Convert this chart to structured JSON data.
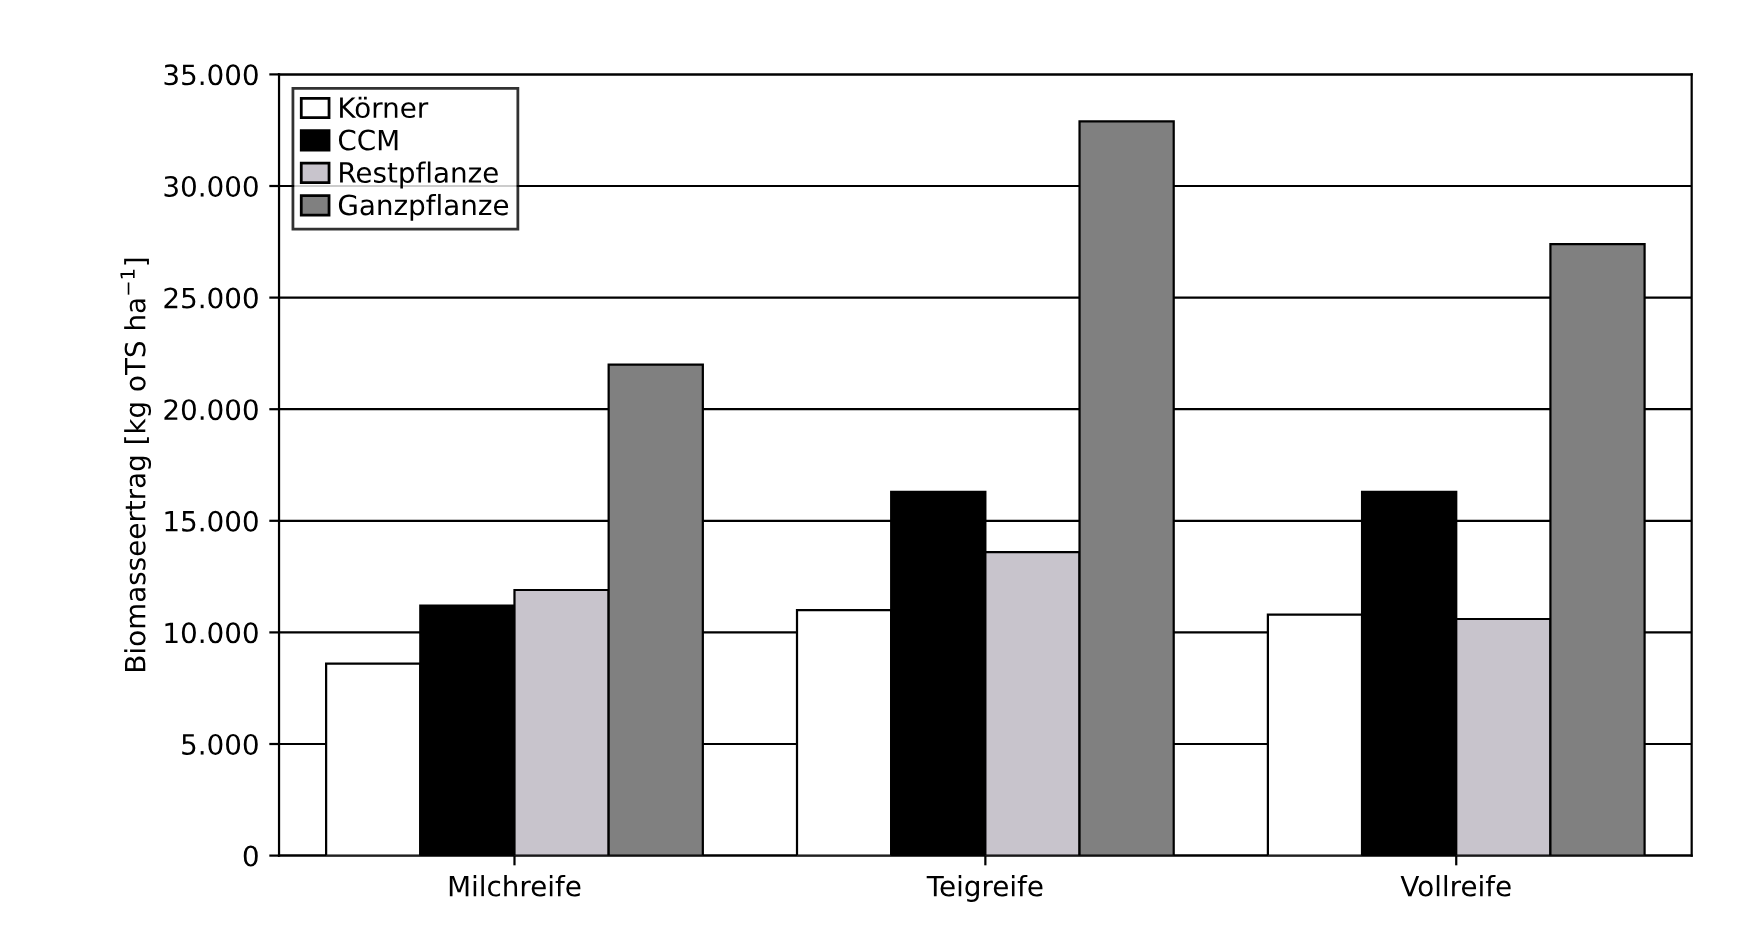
{
  "chart_data": {
    "type": "bar",
    "ylabel": "Biomasseertrag [kg oTS ha$^{−1}$]",
    "categories": [
      "Milchreife",
      "Teigreife",
      "Vollreife"
    ],
    "series": [
      {
        "name": "Körner",
        "color": "#ffffff",
        "values": [
          8600,
          11000,
          10800
        ]
      },
      {
        "name": "CCM",
        "color": "#000000",
        "values": [
          11200,
          16300,
          16300
        ]
      },
      {
        "name": "Restpflanze",
        "color": "#c8c4cc",
        "values": [
          11900,
          13600,
          10600
        ]
      },
      {
        "name": "Ganzpflanze",
        "color": "#808080",
        "values": [
          22000,
          32900,
          27400
        ]
      }
    ],
    "ylim": [
      0,
      35000
    ],
    "yticks": [
      {
        "value": 0,
        "label": "0"
      },
      {
        "value": 5000,
        "label": "5.000"
      },
      {
        "value": 10000,
        "label": "10.000"
      },
      {
        "value": 15000,
        "label": "15.000"
      },
      {
        "value": 20000,
        "label": "20.000"
      },
      {
        "value": 25000,
        "label": "25.000"
      },
      {
        "value": 30000,
        "label": "30.000"
      },
      {
        "value": 35000,
        "label": "35.000"
      }
    ],
    "grid": "y",
    "legend": "top left"
  }
}
